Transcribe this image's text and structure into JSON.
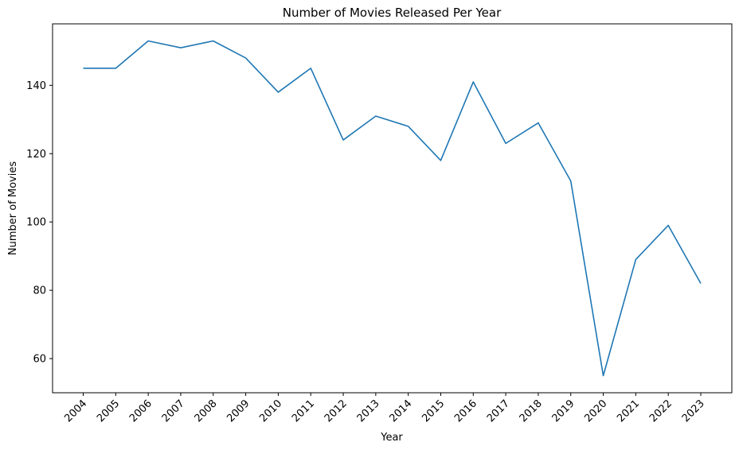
{
  "chart_data": {
    "type": "line",
    "title": "Number of Movies Released Per Year",
    "xlabel": "Year",
    "ylabel": "Number of Movies",
    "x": [
      "2004",
      "2005",
      "2006",
      "2007",
      "2008",
      "2009",
      "2010",
      "2011",
      "2012",
      "2013",
      "2014",
      "2015",
      "2016",
      "2017",
      "2018",
      "2019",
      "2020",
      "2021",
      "2022",
      "2023"
    ],
    "series": [
      {
        "values": [
          145,
          145,
          153,
          151,
          153,
          148,
          138,
          145,
          124,
          131,
          128,
          118,
          141,
          123,
          129,
          112,
          55,
          89,
          99,
          82
        ],
        "color": "#1f77b4"
      }
    ],
    "ylim": [
      50,
      158
    ],
    "yticks": [
      60,
      80,
      100,
      120,
      140
    ],
    "grid": false,
    "legend": "none"
  }
}
